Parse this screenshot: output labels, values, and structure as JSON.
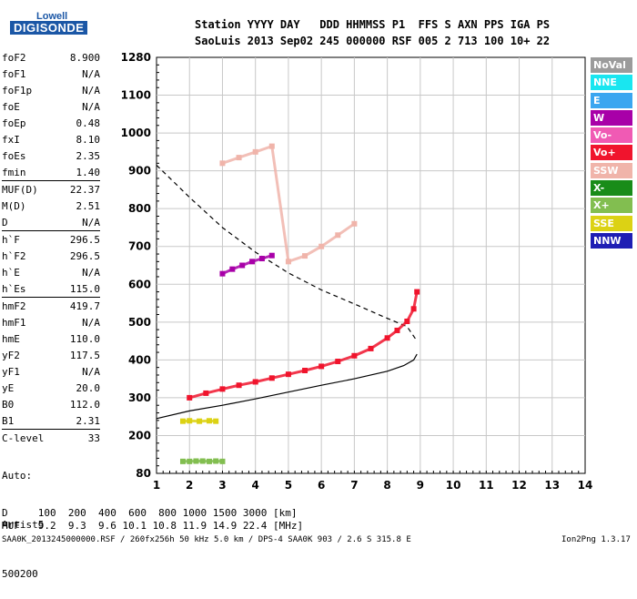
{
  "logo": {
    "top": "Lowell",
    "bottom": "DIGISONDE"
  },
  "header": {
    "line1": "Station YYYY DAY   DDD HHMMSS P1  FFS S AXN PPS IGA PS",
    "line2": "SaoLuis 2013 Sep02 245 000000 RSF 005 2 713 100 10+ 22"
  },
  "params": [
    {
      "label": "foF2",
      "value": "8.900"
    },
    {
      "label": "foF1",
      "value": "N/A"
    },
    {
      "label": "foF1p",
      "value": "N/A"
    },
    {
      "label": "foE",
      "value": "N/A"
    },
    {
      "label": "foEp",
      "value": "0.48"
    },
    {
      "label": "fxI",
      "value": "8.10"
    },
    {
      "label": "foEs",
      "value": "2.35"
    },
    {
      "label": "fmin",
      "value": "1.40"
    },
    {
      "label": "MUF(D)",
      "value": "22.37"
    },
    {
      "label": "M(D)",
      "value": "2.51"
    },
    {
      "label": "D",
      "value": "N/A"
    },
    {
      "label": "h`F",
      "value": "296.5"
    },
    {
      "label": "h`F2",
      "value": "296.5"
    },
    {
      "label": "h`E",
      "value": "N/A"
    },
    {
      "label": "h`Es",
      "value": "115.0"
    },
    {
      "label": "hmF2",
      "value": "419.7"
    },
    {
      "label": "hmF1",
      "value": "N/A"
    },
    {
      "label": "hmE",
      "value": "110.0"
    },
    {
      "label": "yF2",
      "value": "117.5"
    },
    {
      "label": "yF1",
      "value": "N/A"
    },
    {
      "label": "yE",
      "value": "20.0"
    },
    {
      "label": "B0",
      "value": "112.0"
    },
    {
      "label": "B1",
      "value": "2.31"
    },
    {
      "label": "C-level",
      "value": "33"
    }
  ],
  "auto": {
    "line1": "Auto:",
    "line2": "Artist5",
    "line3": "500200"
  },
  "legend": [
    {
      "label": "NoVal",
      "color": "#9b9b9b"
    },
    {
      "label": "NNE",
      "color": "#19e6f0"
    },
    {
      "label": "E",
      "color": "#3aa6f0"
    },
    {
      "label": "W",
      "color": "#a800a8"
    },
    {
      "label": "Vo-",
      "color": "#f05ab4"
    },
    {
      "label": "Vo+",
      "color": "#f0142d"
    },
    {
      "label": "SSW",
      "color": "#f0b4aa"
    },
    {
      "label": "X-",
      "color": "#198c19"
    },
    {
      "label": "X+",
      "color": "#82be50"
    },
    {
      "label": "SSE",
      "color": "#dcd214"
    },
    {
      "label": "NNW",
      "color": "#1e1eb4"
    }
  ],
  "muf_table": {
    "d_row": "D     100  200  400  600  800 1000 1500 3000 [km]",
    "muf_row": "MUF   9.2  9.3  9.6 10.1 10.8 11.9 14.9 22.4 [MHz]"
  },
  "footer": {
    "left": "SAA0K_2013245000000.RSF / 260fx256h 50 kHz 5.0 km / DPS-4 SAA0K 903 / 2.6 S 315.8 E",
    "right": "Ion2Png 1.3.17"
  },
  "chart_data": {
    "type": "scatter",
    "xlim": [
      1,
      14
    ],
    "ylim": [
      80,
      1280
    ],
    "x_ticks": [
      "1",
      "2",
      "3",
      "4",
      "5",
      "6",
      "7",
      "8",
      "9",
      "10",
      "11",
      "12",
      "13",
      "14"
    ],
    "y_ticks": [
      "80",
      "200",
      "300",
      "400",
      "500",
      "600",
      "700",
      "800",
      "900",
      "1000",
      "1100",
      "1280"
    ],
    "y_tick_values": [
      80,
      200,
      300,
      400,
      500,
      600,
      700,
      800,
      900,
      1000,
      1100,
      1280
    ],
    "grid": true,
    "legend_placement": "right-outside",
    "traces": [
      {
        "name": "F2 virtual height",
        "color": "#f0142d",
        "x": [
          2.0,
          2.5,
          3.0,
          3.5,
          4.0,
          4.5,
          5.0,
          5.5,
          6.0,
          6.5,
          7.0,
          7.5,
          8.0,
          8.3,
          8.6,
          8.8,
          8.9
        ],
        "y": [
          300,
          312,
          323,
          333,
          342,
          352,
          362,
          372,
          383,
          396,
          411,
          430,
          458,
          478,
          502,
          535,
          580
        ]
      },
      {
        "name": "F2 multihop",
        "color": "#f0b4aa",
        "x": [
          3.0,
          3.5,
          4.0,
          4.5,
          5.0,
          5.5,
          6.0,
          6.5,
          7.0
        ],
        "y": [
          920,
          935,
          950,
          965,
          660,
          675,
          700,
          730,
          760
        ]
      },
      {
        "name": "F1 trace",
        "color": "#a800a8",
        "x": [
          3.0,
          3.3,
          3.6,
          3.9,
          4.2,
          4.5
        ],
        "y": [
          628,
          640,
          650,
          660,
          668,
          676
        ]
      },
      {
        "name": "Es layer",
        "color": "#82be50",
        "x": [
          1.8,
          2.0,
          2.2,
          2.4,
          2.6,
          2.8,
          3.0
        ],
        "y": [
          118,
          118,
          119,
          119,
          118,
          119,
          118
        ]
      },
      {
        "name": "Es 2nd",
        "color": "#dcd214",
        "x": [
          1.8,
          2.0,
          2.3,
          2.6,
          2.8
        ],
        "y": [
          238,
          239,
          238,
          239,
          238
        ]
      }
    ],
    "profile_solid": {
      "x": [
        1.0,
        2.0,
        3.0,
        4.0,
        5.0,
        6.0,
        7.0,
        8.0,
        8.5,
        8.8,
        8.9
      ],
      "y": [
        245,
        265,
        280,
        297,
        315,
        333,
        350,
        370,
        385,
        400,
        415
      ]
    },
    "profile_dashed": {
      "x": [
        1.0,
        2.0,
        3.0,
        4.0,
        5.0,
        6.0,
        7.0,
        8.0,
        8.6,
        8.9
      ],
      "y": [
        915,
        830,
        750,
        685,
        630,
        585,
        548,
        510,
        488,
        450
      ]
    }
  }
}
